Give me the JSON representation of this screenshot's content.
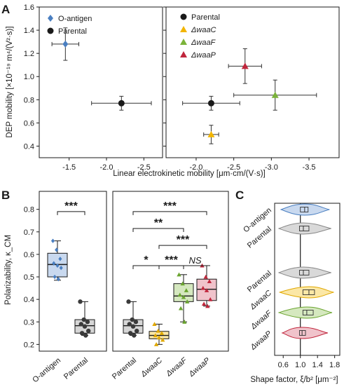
{
  "panels": {
    "A": "A",
    "B": "B",
    "C": "C"
  },
  "chart_data": [
    {
      "panel": "A",
      "type": "scatter",
      "ylabel": "DEP mobility [×10⁻¹⁹ m⁴/(V²·s)]",
      "xlabel": "Linear electrokinetic mobility [μm·cm/(V·s)]",
      "ylim": [
        0.3,
        1.6
      ],
      "yticks": [
        "0.4",
        "0.6",
        "0.8",
        "1.0",
        "1.2",
        "1.4",
        "1.6"
      ],
      "subplots": [
        {
          "xlim": [
            -1.1,
            -2.75
          ],
          "xticks": [
            "-1.5",
            "-2.0",
            "-2.5"
          ],
          "legend": [
            {
              "label": "O-antigen",
              "marker": "diamond",
              "color": "#4a7fc1"
            },
            {
              "label": "Parental",
              "marker": "circle",
              "color": "#1a1a1a"
            }
          ],
          "series": [
            {
              "name": "O-antigen",
              "color": "#4a7fc1",
              "marker": "diamond",
              "x": -1.45,
              "y": 1.28,
              "xerr": 0.18,
              "yerr": 0.14
            },
            {
              "name": "Parental",
              "color": "#1a1a1a",
              "marker": "circle",
              "x": -2.2,
              "y": 0.77,
              "xerr": 0.4,
              "yerr": 0.06
            }
          ]
        },
        {
          "xlim": [
            -1.6,
            -3.9
          ],
          "xticks": [
            "-2.0",
            "-2.5",
            "-3.0",
            "-3.5"
          ],
          "legend": [
            {
              "label": "Parental",
              "marker": "circle",
              "color": "#1a1a1a"
            },
            {
              "label": "ΔwaaC",
              "marker": "triangle",
              "color": "#f2b500"
            },
            {
              "label": "ΔwaaF",
              "marker": "triangle",
              "color": "#7bb33a"
            },
            {
              "label": "ΔwaaP",
              "marker": "triangle",
              "color": "#c0263c"
            }
          ],
          "series": [
            {
              "name": "Parental",
              "color": "#1a1a1a",
              "marker": "circle",
              "x": -2.2,
              "y": 0.77,
              "xerr": 0.38,
              "yerr": 0.06
            },
            {
              "name": "ΔwaaC",
              "color": "#f2b500",
              "marker": "triangle",
              "x": -2.2,
              "y": 0.5,
              "xerr": 0.1,
              "yerr": 0.08
            },
            {
              "name": "ΔwaaF",
              "color": "#7bb33a",
              "marker": "triangle",
              "x": -3.05,
              "y": 0.84,
              "xerr": 0.55,
              "yerr": 0.13
            },
            {
              "name": "ΔwaaP",
              "color": "#c0263c",
              "marker": "triangle",
              "x": -2.65,
              "y": 1.09,
              "xerr": 0.22,
              "yerr": 0.15
            }
          ]
        }
      ]
    },
    {
      "panel": "B",
      "type": "box",
      "ylabel": "Polarizability, κ_CM",
      "ylim": [
        0.17,
        0.88
      ],
      "yticks": [
        "0.2",
        "0.3",
        "0.4",
        "0.5",
        "0.6",
        "0.7",
        "0.8"
      ],
      "groups": [
        {
          "categories": [
            "O-antigen",
            "Parental"
          ],
          "boxes": [
            {
              "name": "O-antigen",
              "color": "#4a7fc1",
              "fill": "#c9d9ef",
              "marker": "diamond",
              "q1": 0.5,
              "median": 0.555,
              "q3": 0.605,
              "min": 0.485,
              "max": 0.66,
              "points": [
                0.66,
                0.62,
                0.58,
                0.56,
                0.55,
                0.54,
                0.5,
                0.49
              ]
            },
            {
              "name": "Parental",
              "color": "#3a3a3a",
              "fill": "#d6d6d6",
              "marker": "circle",
              "q1": 0.25,
              "median": 0.283,
              "q3": 0.31,
              "min": 0.24,
              "max": 0.39,
              "points": [
                0.39,
                0.31,
                0.3,
                0.29,
                0.28,
                0.26,
                0.25,
                0.24
              ]
            }
          ],
          "significance": [
            {
              "from": "O-antigen",
              "to": "Parental",
              "label": "***",
              "y": 0.79
            }
          ]
        },
        {
          "categories": [
            "Parental",
            "ΔwaaC",
            "ΔwaaF",
            "ΔwaaP"
          ],
          "boxes": [
            {
              "name": "Parental",
              "color": "#3a3a3a",
              "fill": "#d6d6d6",
              "marker": "circle",
              "q1": 0.25,
              "median": 0.283,
              "q3": 0.31,
              "min": 0.24,
              "max": 0.39,
              "points": [
                0.39,
                0.31,
                0.3,
                0.29,
                0.28,
                0.26,
                0.25,
                0.24
              ]
            },
            {
              "name": "ΔwaaC",
              "color": "#e0a800",
              "fill": "#fbe7a6",
              "marker": "triangle",
              "q1": 0.225,
              "median": 0.24,
              "q3": 0.258,
              "min": 0.2,
              "max": 0.29,
              "points": [
                0.29,
                0.26,
                0.25,
                0.24,
                0.23,
                0.22,
                0.2
              ]
            },
            {
              "name": "ΔwaaF",
              "color": "#6aa42f",
              "fill": "#d5e8bf",
              "marker": "triangle",
              "q1": 0.39,
              "median": 0.415,
              "q3": 0.47,
              "min": 0.3,
              "max": 0.51,
              "points": [
                0.51,
                0.47,
                0.44,
                0.42,
                0.41,
                0.39,
                0.36,
                0.3
              ]
            },
            {
              "name": "ΔwaaP",
              "color": "#c0263c",
              "fill": "#f0c3cb",
              "marker": "triangle",
              "q1": 0.395,
              "median": 0.445,
              "q3": 0.49,
              "min": 0.37,
              "max": 0.55,
              "points": [
                0.55,
                0.5,
                0.48,
                0.45,
                0.44,
                0.4,
                0.38,
                0.37
              ]
            }
          ],
          "significance": [
            {
              "from": "Parental",
              "to": "ΔwaaP",
              "label": "***",
              "y": 0.79
            },
            {
              "from": "Parental",
              "to": "ΔwaaF",
              "label": "**",
              "y": 0.715
            },
            {
              "from": "ΔwaaC",
              "to": "ΔwaaP",
              "label": "***",
              "y": 0.64
            },
            {
              "from": "Parental",
              "to": "ΔwaaC",
              "label": "*",
              "y": 0.55
            },
            {
              "from": "ΔwaaC",
              "to": "ΔwaaF",
              "label": "***",
              "y": 0.55
            },
            {
              "from": "ΔwaaF",
              "to": "ΔwaaP",
              "label": "NS",
              "y": 0.55
            }
          ]
        }
      ]
    },
    {
      "panel": "C",
      "type": "violin",
      "xlabel": "Shape factor, ξ/b² [μm⁻²]",
      "xlim": [
        0.4,
        1.92
      ],
      "xticks": [
        "0.6",
        "1.0",
        "1.4",
        "1.8"
      ],
      "reference_line": 1.0,
      "violins": [
        {
          "name": "O-antigen",
          "color": "#4a7fc1",
          "fill": "#c9d9ef",
          "min": 0.55,
          "q1": 1.0,
          "median": 1.1,
          "q3": 1.18,
          "max": 1.68
        },
        {
          "name": "Parental",
          "color": "#888888",
          "fill": "#d9d9d9",
          "min": 0.5,
          "q1": 0.98,
          "median": 1.07,
          "q3": 1.2,
          "max": 1.72
        },
        {
          "name": "Parental",
          "color": "#888888",
          "fill": "#d9d9d9",
          "min": 0.5,
          "q1": 0.98,
          "median": 1.07,
          "q3": 1.2,
          "max": 1.72
        },
        {
          "name": "ΔwaaC",
          "color": "#e0a800",
          "fill": "#fbe7a6",
          "min": 0.52,
          "q1": 1.06,
          "median": 1.2,
          "q3": 1.33,
          "max": 1.78
        },
        {
          "name": "ΔwaaF",
          "color": "#6aa42f",
          "fill": "#d5e8bf",
          "min": 0.5,
          "q1": 1.06,
          "median": 1.15,
          "q3": 1.3,
          "max": 1.74
        },
        {
          "name": "ΔwaaP",
          "color": "#c0263c",
          "fill": "#f0c3cb",
          "min": 0.58,
          "q1": 0.98,
          "median": 1.04,
          "q3": 1.12,
          "max": 1.64
        }
      ]
    }
  ]
}
